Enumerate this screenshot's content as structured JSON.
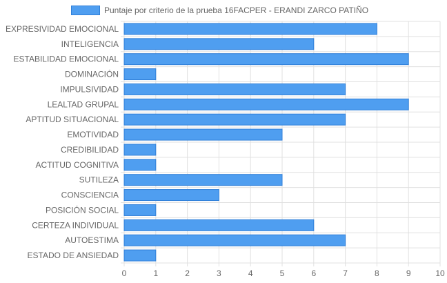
{
  "chart_data": {
    "type": "bar",
    "orientation": "horizontal",
    "categories": [
      "EXPRESIVIDAD EMOCIONAL",
      "INTELIGENCIA",
      "ESTABILIDAD EMOCIONAL",
      "DOMINACIÓN",
      "IMPULSIVIDAD",
      "LEALTAD GRUPAL",
      "APTITUD SITUACIONAL",
      "EMOTIVIDAD",
      "CREDIBILIDAD",
      "ACTITUD COGNITIVA",
      "SUTILEZA",
      "CONSCIENCIA",
      "POSICIÓN SOCIAL",
      "CERTEZA INDIVIDUAL",
      "AUTOESTIMA",
      "ESTADO DE ANSIEDAD"
    ],
    "series": [
      {
        "name": "Puntaje por criterio de la prueba 16FACPER - ERANDI ZARCO PATIÑO",
        "values": [
          8,
          6,
          9,
          1,
          7,
          9,
          7,
          5,
          1,
          1,
          5,
          3,
          1,
          6,
          7,
          1
        ]
      }
    ],
    "xlim": [
      0,
      10
    ],
    "x_ticks": [
      "0",
      "1",
      "2",
      "3",
      "4",
      "5",
      "6",
      "7",
      "8",
      "9",
      "10"
    ],
    "grid": true,
    "legend_position": "top",
    "colors": {
      "bar_fill": "#4f9ef0",
      "bar_border": "#2f7fd8",
      "grid": "#e0e0e0",
      "text": "#666666"
    }
  }
}
